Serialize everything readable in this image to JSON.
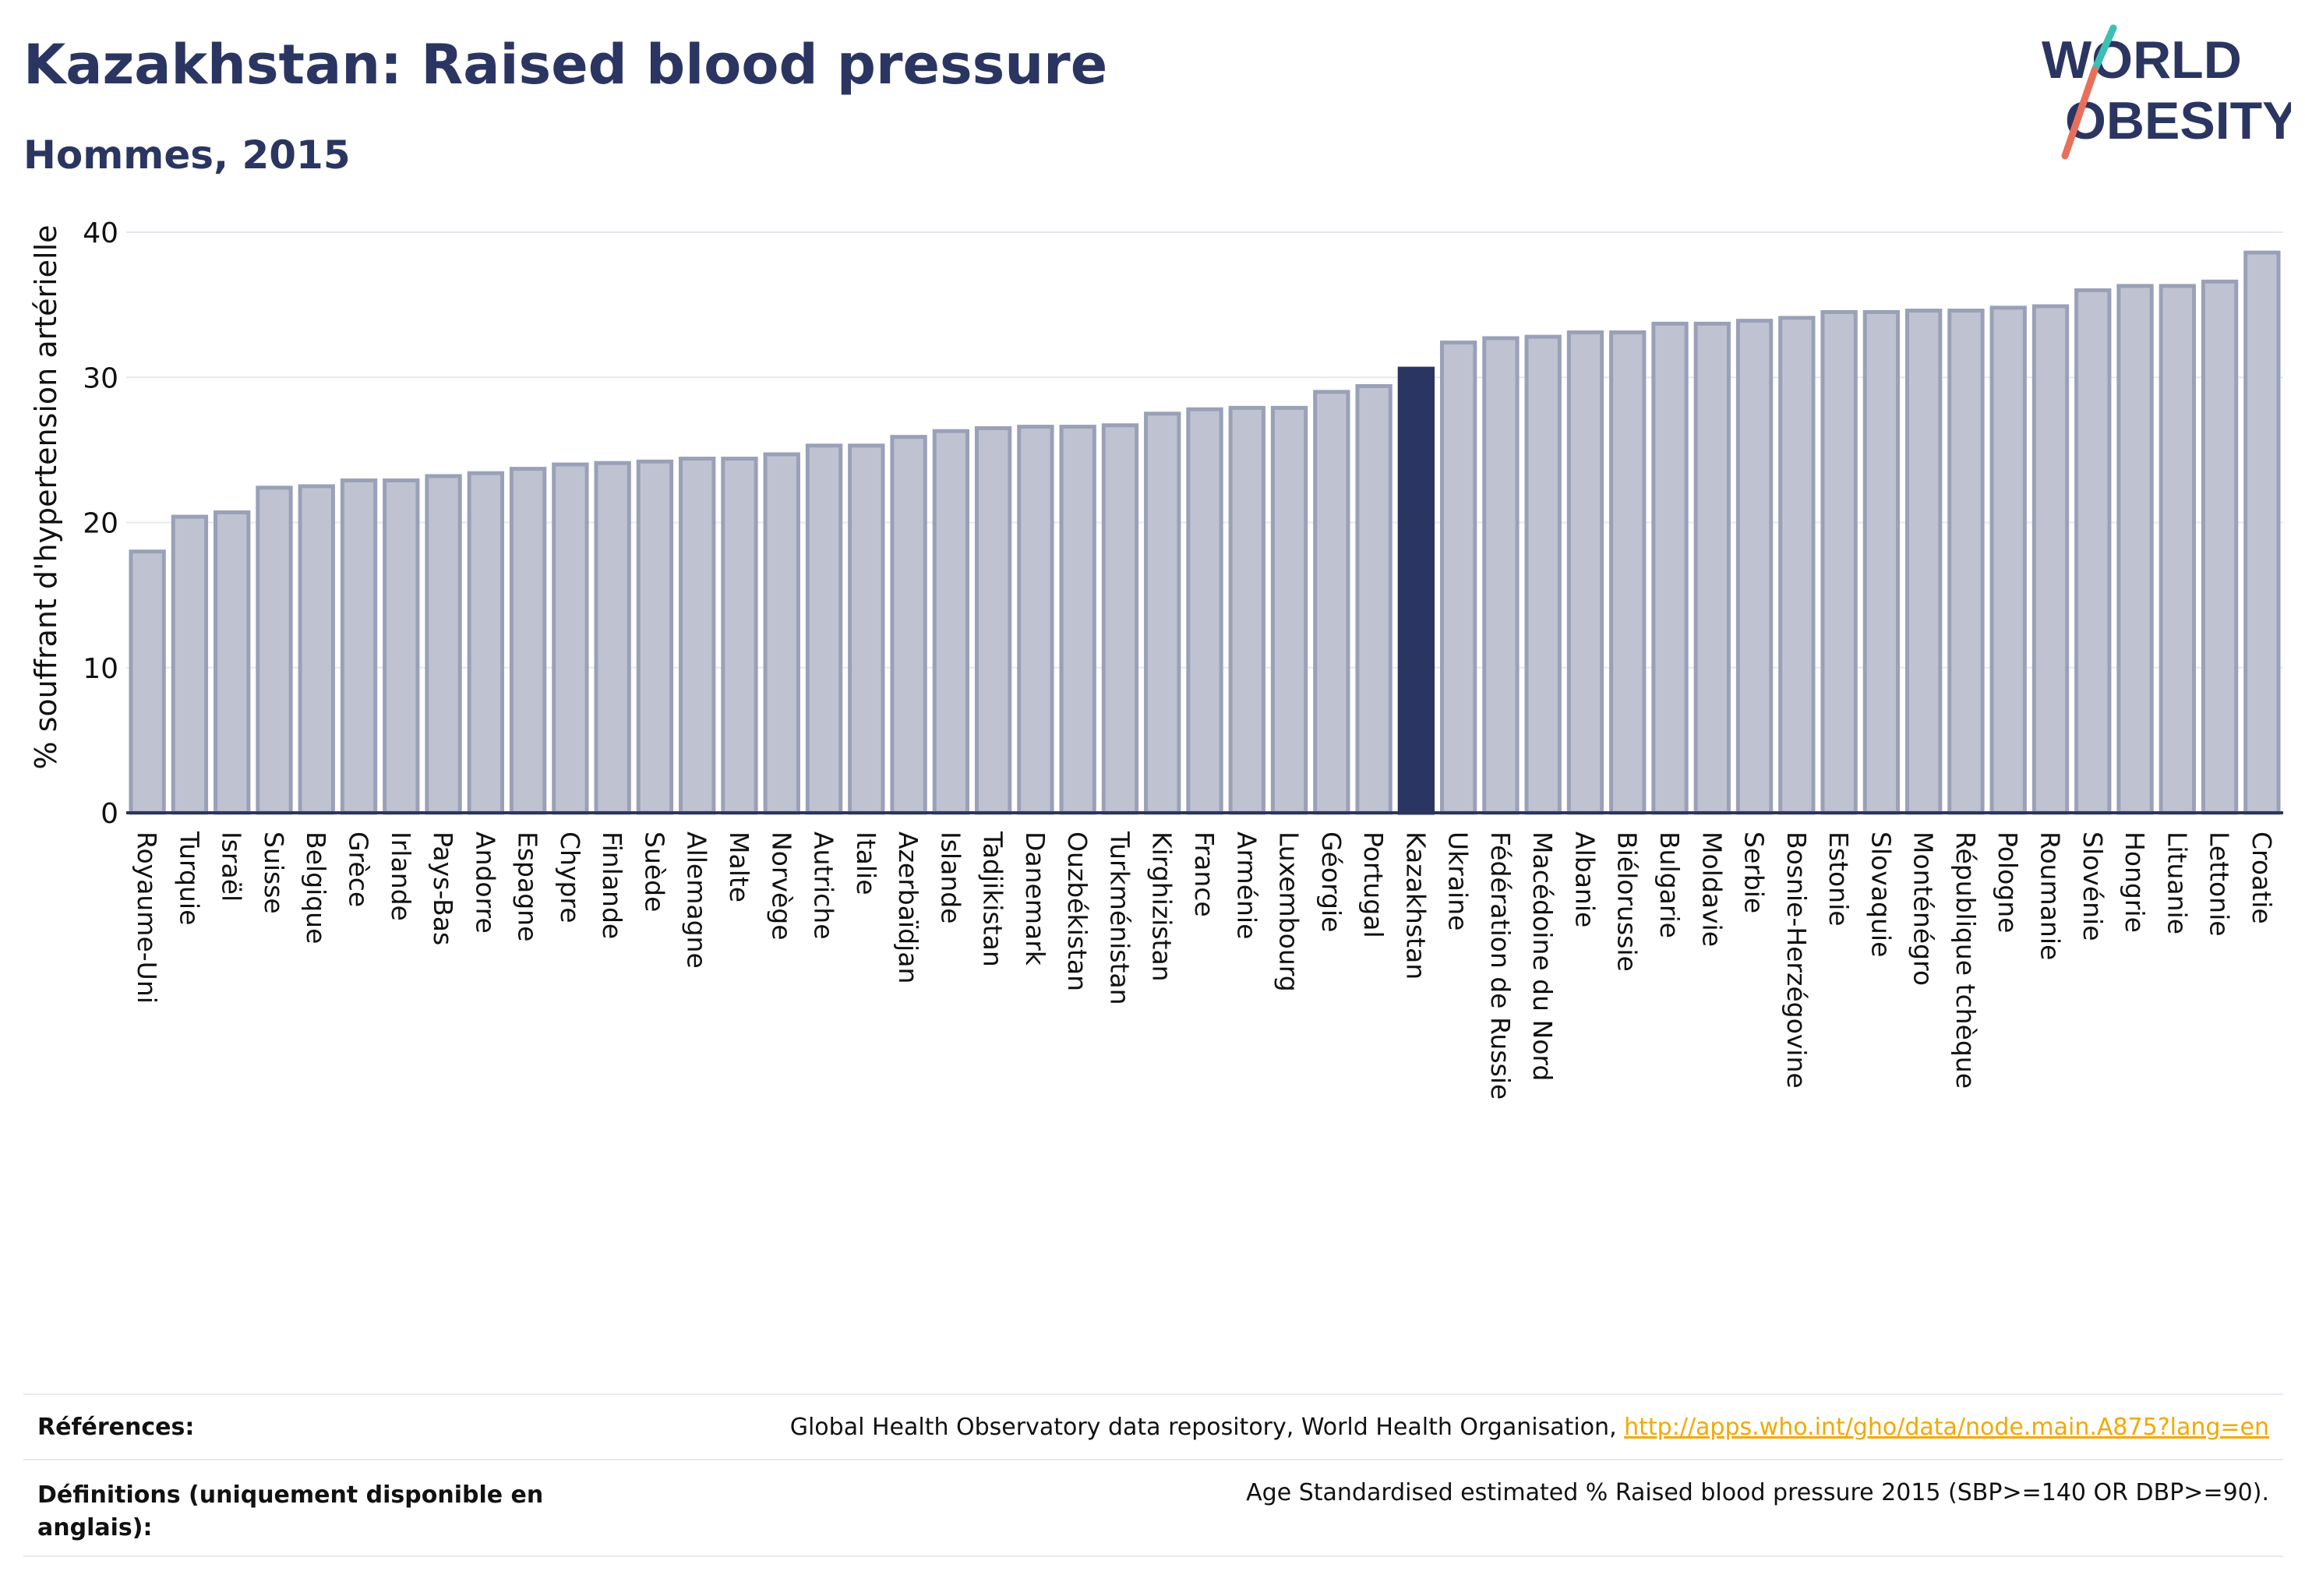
{
  "title": "Kazakhstan: Raised blood pressure",
  "subtitle": "Hommes, 2015",
  "logo": {
    "line1": "WORLD",
    "line2": "OBESITY",
    "brand_color": "#2b3561",
    "slash_colors": [
      "#3cbfb4",
      "#e8705a"
    ]
  },
  "colors": {
    "bar": "#bfc3d1",
    "bar_stroke": "#9aa0b8",
    "highlight": "#2b3561",
    "grid": "#e6e8ef",
    "axis": "#2b3561"
  },
  "chart_data": {
    "type": "bar",
    "ylabel": "% souffrant d'hypertension artérielle",
    "ylim": [
      0,
      40
    ],
    "yticks": [
      0,
      10,
      20,
      30,
      40
    ],
    "grid": true,
    "highlight": "Kazakhstan",
    "categories": [
      "Royaume-Uni",
      "Turquie",
      "Israël",
      "Suisse",
      "Belgique",
      "Grèce",
      "Irlande",
      "Pays-Bas",
      "Andorre",
      "Espagne",
      "Chypre",
      "Finlande",
      "Suède",
      "Allemagne",
      "Malte",
      "Norvège",
      "Autriche",
      "Italie",
      "Azerbaïdjan",
      "Islande",
      "Tadjikistan",
      "Danemark",
      "Ouzbékistan",
      "Turkménistan",
      "Kirghizistan",
      "France",
      "Arménie",
      "Luxembourg",
      "Géorgie",
      "Portugal",
      "Kazakhstan",
      "Ukraine",
      "Fédération de Russie",
      "Macédoine du Nord",
      "Albanie",
      "Biélorussie",
      "Bulgarie",
      "Moldavie",
      "Serbie",
      "Bosnie-Herzégovine",
      "Estonie",
      "Slovaquie",
      "Monténégro",
      "République tchèque",
      "Pologne",
      "Roumanie",
      "Slovénie",
      "Hongrie",
      "Lituanie",
      "Lettonie",
      "Croatie"
    ],
    "values": [
      18.0,
      20.4,
      20.7,
      22.4,
      22.5,
      22.9,
      22.9,
      23.2,
      23.4,
      23.7,
      24.0,
      24.1,
      24.2,
      24.4,
      24.4,
      24.7,
      25.3,
      25.3,
      25.9,
      26.3,
      26.5,
      26.6,
      26.6,
      26.7,
      27.5,
      27.8,
      27.9,
      27.9,
      29.0,
      29.4,
      30.6,
      32.4,
      32.7,
      32.8,
      33.1,
      33.1,
      33.7,
      33.7,
      33.9,
      34.1,
      34.5,
      34.5,
      34.6,
      34.6,
      34.8,
      34.9,
      36.0,
      36.3,
      36.3,
      36.6,
      38.6
    ]
  },
  "references": {
    "label": "Références:",
    "text": "Global Health Observatory data repository, World Health Organisation, ",
    "link": "http://apps.who.int/gho/data/node.main.A875?lang=en"
  },
  "definitions": {
    "label": "Définitions (uniquement disponible en anglais):",
    "text": "Age Standardised estimated % Raised blood pressure 2015 (SBP>=140 OR DBP>=90)."
  }
}
